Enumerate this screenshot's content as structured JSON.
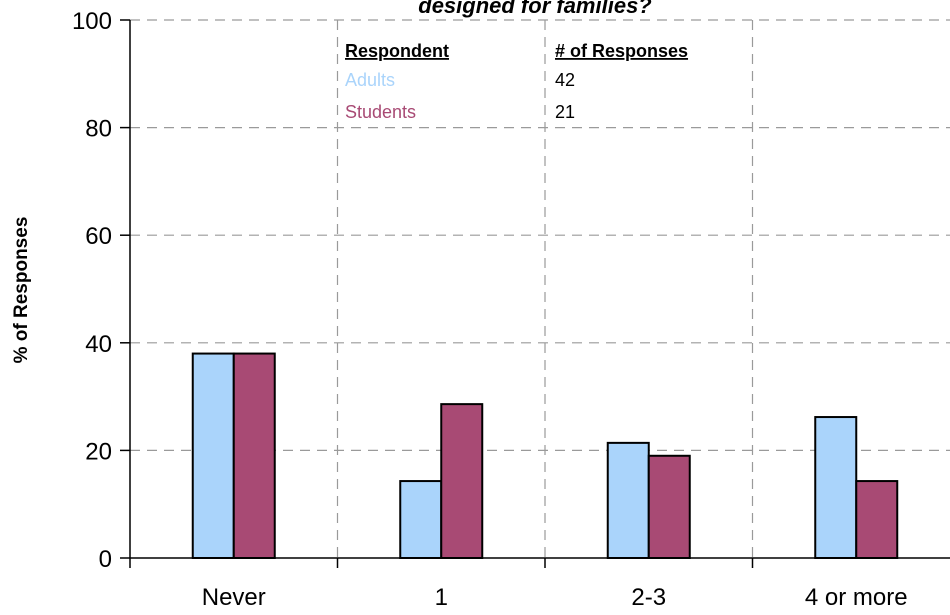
{
  "chart_data": {
    "type": "bar",
    "title": "designed for families?",
    "xlabel": "",
    "ylabel": "% of Responses",
    "ylim": [
      0,
      100
    ],
    "yticks": [
      "0",
      "20",
      "40",
      "60",
      "80",
      "100"
    ],
    "categories": [
      "Never",
      "1",
      "2-3",
      "4 or more"
    ],
    "series": [
      {
        "name": "Adults",
        "values": [
          38,
          14.3,
          21.4,
          26.2
        ]
      },
      {
        "name": "Students",
        "values": [
          38,
          28.6,
          19,
          14.3
        ]
      }
    ],
    "grid": true,
    "legend": {
      "placement": "top-center",
      "headers": [
        "Respondent",
        "# of Responses"
      ],
      "rows": [
        {
          "label": "Adults",
          "count": "42"
        },
        {
          "label": "Students",
          "count": "21"
        }
      ]
    },
    "colors": {
      "Adults": "#aad4fb",
      "Students": "#a84a74"
    }
  }
}
